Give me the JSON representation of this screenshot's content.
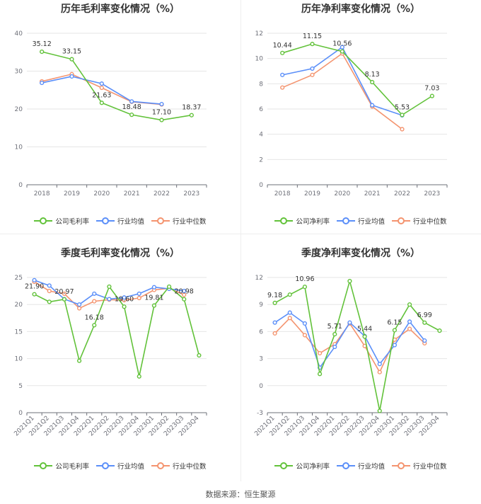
{
  "source": "数据来源：恒生聚源",
  "colors": {
    "company": "#62c23a",
    "avg": "#5b8ff9",
    "median": "#f4946f"
  },
  "chart_data": [
    {
      "type": "line",
      "title": "历年毛利率变化情况（%）",
      "categories": [
        "2018",
        "2019",
        "2020",
        "2021",
        "2022",
        "2023"
      ],
      "ylim": [
        0,
        40
      ],
      "yticks": [
        0,
        10,
        20,
        30,
        40
      ],
      "rotate_x": false,
      "series": [
        {
          "name": "公司毛利率",
          "key": "company",
          "values": [
            35.12,
            33.15,
            21.63,
            18.48,
            17.1,
            18.37
          ]
        },
        {
          "name": "行业均值",
          "key": "avg",
          "values": [
            26.9,
            28.6,
            26.7,
            22.0,
            21.3,
            null
          ]
        },
        {
          "name": "行业中位数",
          "key": "median",
          "values": [
            27.3,
            29.2,
            25.6,
            21.9,
            21.2,
            null
          ]
        }
      ],
      "labels": [
        {
          "i": 0,
          "text": "35.12"
        },
        {
          "i": 1,
          "text": "33.15"
        },
        {
          "i": 2,
          "text": "21.63"
        },
        {
          "i": 3,
          "text": "18.48"
        },
        {
          "i": 4,
          "text": "17.10"
        },
        {
          "i": 5,
          "text": "18.37"
        }
      ]
    },
    {
      "type": "line",
      "title": "历年净利率变化情况（%）",
      "categories": [
        "2018",
        "2019",
        "2020",
        "2021",
        "2022",
        "2023"
      ],
      "ylim": [
        0,
        12
      ],
      "yticks": [
        0,
        2,
        4,
        6,
        8,
        10,
        12
      ],
      "rotate_x": false,
      "series": [
        {
          "name": "公司净利率",
          "key": "company",
          "values": [
            10.44,
            11.15,
            10.56,
            8.13,
            5.53,
            7.03
          ]
        },
        {
          "name": "行业均值",
          "key": "avg",
          "values": [
            8.7,
            9.2,
            10.9,
            6.3,
            5.5,
            null
          ]
        },
        {
          "name": "行业中位数",
          "key": "median",
          "values": [
            7.7,
            8.7,
            10.4,
            6.2,
            4.4,
            null
          ]
        }
      ],
      "labels": [
        {
          "i": 0,
          "text": "10.44"
        },
        {
          "i": 1,
          "text": "11.15"
        },
        {
          "i": 2,
          "text": "10.56"
        },
        {
          "i": 3,
          "text": "8.13"
        },
        {
          "i": 4,
          "text": "5.53"
        },
        {
          "i": 5,
          "text": "7.03"
        }
      ]
    },
    {
      "type": "line",
      "title": "季度毛利率变化情况（%）",
      "categories": [
        "2021Q1",
        "2021Q2",
        "2021Q3",
        "2021Q4",
        "2022Q1",
        "2022Q2",
        "2022Q3",
        "2022Q4",
        "2023Q1",
        "2023Q2",
        "2023Q3",
        "2023Q4"
      ],
      "ylim": [
        0,
        25
      ],
      "yticks": [
        0,
        5,
        10,
        15,
        20,
        25
      ],
      "rotate_x": true,
      "series": [
        {
          "name": "公司毛利率",
          "key": "company",
          "values": [
            21.9,
            20.5,
            20.97,
            9.6,
            16.18,
            23.3,
            19.6,
            6.7,
            19.81,
            23.3,
            20.98,
            10.6
          ]
        },
        {
          "name": "行业均值",
          "key": "avg",
          "values": [
            24.5,
            23.5,
            21.0,
            20.0,
            22.0,
            21.0,
            21.3,
            22.0,
            23.2,
            22.9,
            22.5,
            null
          ]
        },
        {
          "name": "行业中位数",
          "key": "median",
          "values": [
            24.2,
            22.5,
            22.0,
            19.3,
            20.6,
            20.9,
            20.8,
            21.2,
            22.7,
            23.0,
            21.8,
            null
          ]
        }
      ],
      "labels": [
        {
          "i": 0,
          "text": "21.90"
        },
        {
          "i": 2,
          "text": "20.97"
        },
        {
          "i": 4,
          "text": "16.18"
        },
        {
          "i": 6,
          "text": "19.60"
        },
        {
          "i": 8,
          "text": "19.81"
        },
        {
          "i": 10,
          "text": "20.98"
        }
      ]
    },
    {
      "type": "line",
      "title": "季度净利率变化情况（%）",
      "categories": [
        "2021Q1",
        "2021Q2",
        "2021Q3",
        "2021Q4",
        "2022Q1",
        "2022Q2",
        "2022Q3",
        "2022Q4",
        "2023Q1",
        "2023Q2",
        "2023Q3",
        "2023Q4"
      ],
      "ylim": [
        -3,
        12
      ],
      "yticks": [
        -3,
        0,
        3,
        6,
        9,
        12
      ],
      "rotate_x": true,
      "series": [
        {
          "name": "公司净利率",
          "key": "company",
          "values": [
            9.18,
            10.1,
            10.96,
            1.3,
            5.71,
            11.6,
            5.44,
            -2.8,
            6.15,
            9.0,
            6.99,
            6.1
          ]
        },
        {
          "name": "行业均值",
          "key": "avg",
          "values": [
            7.0,
            8.1,
            6.9,
            2.0,
            4.3,
            7.0,
            5.5,
            2.4,
            4.5,
            7.1,
            5.0,
            null
          ]
        },
        {
          "name": "行业中位数",
          "key": "median",
          "values": [
            5.8,
            7.5,
            5.6,
            3.6,
            4.6,
            6.9,
            4.4,
            1.5,
            5.1,
            6.3,
            4.7,
            null
          ]
        }
      ],
      "labels": [
        {
          "i": 0,
          "text": "9.18"
        },
        {
          "i": 2,
          "text": "10.96"
        },
        {
          "i": 4,
          "text": "5.71"
        },
        {
          "i": 6,
          "text": "5.44"
        },
        {
          "i": 8,
          "text": "6.15"
        },
        {
          "i": 10,
          "text": "6.99"
        }
      ]
    }
  ]
}
